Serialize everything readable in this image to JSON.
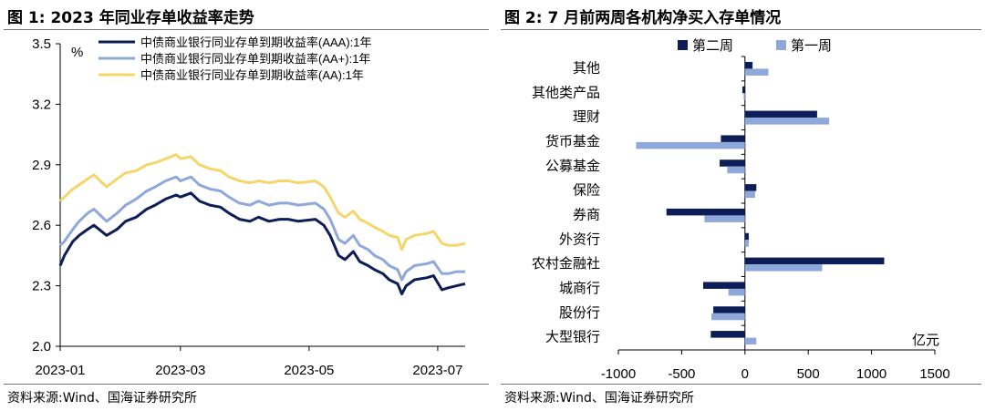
{
  "left": {
    "title": "图 1:  2023 年同业存单收益率走势",
    "source": "资料来源:Wind、国海证券研究所"
  },
  "right": {
    "title": "图 2:  7 月前两周各机构净买入存单情况",
    "source": "资料来源:Wind、国海证券研究所"
  },
  "chart_data": [
    {
      "type": "line",
      "title": "2023 年同业存单收益率走势",
      "ylabel": "%",
      "ylim": [
        2.0,
        3.5
      ],
      "yticks": [
        "3.5",
        "3.2",
        "2.9",
        "2.6",
        "2.3",
        "2.0"
      ],
      "xticks": [
        "2023-01",
        "2023-03",
        "2023-05",
        "2023-07"
      ],
      "xlim": [
        "2023-01-03",
        "2023-07-14"
      ],
      "grid": false,
      "legend_position": "top",
      "series": [
        {
          "name": "中债商业银行同业存单到期收益率(AAA):1年",
          "color": "#0d1d57",
          "points": [
            [
              "2023-01-03",
              2.4
            ],
            [
              "2023-01-05",
              2.45
            ],
            [
              "2023-01-09",
              2.52
            ],
            [
              "2023-01-12",
              2.55
            ],
            [
              "2023-01-16",
              2.58
            ],
            [
              "2023-01-19",
              2.6
            ],
            [
              "2023-01-25",
              2.55
            ],
            [
              "2023-01-30",
              2.58
            ],
            [
              "2023-02-03",
              2.62
            ],
            [
              "2023-02-08",
              2.64
            ],
            [
              "2023-02-13",
              2.68
            ],
            [
              "2023-02-17",
              2.7
            ],
            [
              "2023-02-22",
              2.73
            ],
            [
              "2023-02-27",
              2.75
            ],
            [
              "2023-03-01",
              2.74
            ],
            [
              "2023-03-06",
              2.76
            ],
            [
              "2023-03-10",
              2.72
            ],
            [
              "2023-03-15",
              2.7
            ],
            [
              "2023-03-20",
              2.69
            ],
            [
              "2023-03-24",
              2.66
            ],
            [
              "2023-03-29",
              2.63
            ],
            [
              "2023-04-03",
              2.62
            ],
            [
              "2023-04-07",
              2.64
            ],
            [
              "2023-04-12",
              2.62
            ],
            [
              "2023-04-17",
              2.63
            ],
            [
              "2023-04-21",
              2.63
            ],
            [
              "2023-04-26",
              2.62
            ],
            [
              "2023-05-04",
              2.63
            ],
            [
              "2023-05-08",
              2.6
            ],
            [
              "2023-05-11",
              2.55
            ],
            [
              "2023-05-15",
              2.45
            ],
            [
              "2023-05-18",
              2.43
            ],
            [
              "2023-05-22",
              2.47
            ],
            [
              "2023-05-25",
              2.42
            ],
            [
              "2023-05-29",
              2.4
            ],
            [
              "2023-06-01",
              2.38
            ],
            [
              "2023-06-05",
              2.36
            ],
            [
              "2023-06-08",
              2.33
            ],
            [
              "2023-06-12",
              2.31
            ],
            [
              "2023-06-14",
              2.26
            ],
            [
              "2023-06-16",
              2.3
            ],
            [
              "2023-06-20",
              2.33
            ],
            [
              "2023-06-26",
              2.34
            ],
            [
              "2023-06-29",
              2.35
            ],
            [
              "2023-07-03",
              2.28
            ],
            [
              "2023-07-06",
              2.29
            ],
            [
              "2023-07-10",
              2.3
            ],
            [
              "2023-07-14",
              2.31
            ]
          ]
        },
        {
          "name": "中债商业银行同业存单到期收益率(AA+):1年",
          "color": "#8fa8dc",
          "points": [
            [
              "2023-01-03",
              2.5
            ],
            [
              "2023-01-05",
              2.52
            ],
            [
              "2023-01-09",
              2.58
            ],
            [
              "2023-01-12",
              2.62
            ],
            [
              "2023-01-16",
              2.66
            ],
            [
              "2023-01-19",
              2.68
            ],
            [
              "2023-01-25",
              2.62
            ],
            [
              "2023-01-30",
              2.66
            ],
            [
              "2023-02-03",
              2.7
            ],
            [
              "2023-02-08",
              2.73
            ],
            [
              "2023-02-13",
              2.77
            ],
            [
              "2023-02-17",
              2.79
            ],
            [
              "2023-02-22",
              2.82
            ],
            [
              "2023-02-27",
              2.84
            ],
            [
              "2023-03-01",
              2.82
            ],
            [
              "2023-03-06",
              2.84
            ],
            [
              "2023-03-10",
              2.8
            ],
            [
              "2023-03-15",
              2.78
            ],
            [
              "2023-03-20",
              2.77
            ],
            [
              "2023-03-24",
              2.74
            ],
            [
              "2023-03-29",
              2.71
            ],
            [
              "2023-04-03",
              2.7
            ],
            [
              "2023-04-07",
              2.72
            ],
            [
              "2023-04-12",
              2.7
            ],
            [
              "2023-04-17",
              2.71
            ],
            [
              "2023-04-21",
              2.71
            ],
            [
              "2023-04-26",
              2.7
            ],
            [
              "2023-05-04",
              2.71
            ],
            [
              "2023-05-08",
              2.68
            ],
            [
              "2023-05-11",
              2.63
            ],
            [
              "2023-05-15",
              2.53
            ],
            [
              "2023-05-18",
              2.51
            ],
            [
              "2023-05-22",
              2.55
            ],
            [
              "2023-05-25",
              2.5
            ],
            [
              "2023-05-29",
              2.48
            ],
            [
              "2023-06-01",
              2.45
            ],
            [
              "2023-06-05",
              2.43
            ],
            [
              "2023-06-08",
              2.4
            ],
            [
              "2023-06-12",
              2.38
            ],
            [
              "2023-06-14",
              2.33
            ],
            [
              "2023-06-16",
              2.37
            ],
            [
              "2023-06-20",
              2.4
            ],
            [
              "2023-06-26",
              2.41
            ],
            [
              "2023-06-29",
              2.42
            ],
            [
              "2023-07-03",
              2.36
            ],
            [
              "2023-07-06",
              2.36
            ],
            [
              "2023-07-10",
              2.37
            ],
            [
              "2023-07-14",
              2.37
            ]
          ]
        },
        {
          "name": "中债商业银行同业存单到期收益率(AA):1年",
          "color": "#f6d66b",
          "points": [
            [
              "2023-01-03",
              2.72
            ],
            [
              "2023-01-05",
              2.74
            ],
            [
              "2023-01-09",
              2.78
            ],
            [
              "2023-01-12",
              2.8
            ],
            [
              "2023-01-16",
              2.83
            ],
            [
              "2023-01-19",
              2.85
            ],
            [
              "2023-01-25",
              2.79
            ],
            [
              "2023-01-30",
              2.83
            ],
            [
              "2023-02-03",
              2.86
            ],
            [
              "2023-02-08",
              2.87
            ],
            [
              "2023-02-13",
              2.9
            ],
            [
              "2023-02-17",
              2.91
            ],
            [
              "2023-02-22",
              2.93
            ],
            [
              "2023-02-27",
              2.95
            ],
            [
              "2023-03-01",
              2.93
            ],
            [
              "2023-03-06",
              2.94
            ],
            [
              "2023-03-10",
              2.9
            ],
            [
              "2023-03-15",
              2.88
            ],
            [
              "2023-03-20",
              2.87
            ],
            [
              "2023-03-24",
              2.84
            ],
            [
              "2023-03-29",
              2.82
            ],
            [
              "2023-04-03",
              2.81
            ],
            [
              "2023-04-07",
              2.82
            ],
            [
              "2023-04-12",
              2.81
            ],
            [
              "2023-04-17",
              2.82
            ],
            [
              "2023-04-21",
              2.82
            ],
            [
              "2023-04-26",
              2.81
            ],
            [
              "2023-05-04",
              2.82
            ],
            [
              "2023-05-08",
              2.79
            ],
            [
              "2023-05-11",
              2.74
            ],
            [
              "2023-05-15",
              2.66
            ],
            [
              "2023-05-18",
              2.64
            ],
            [
              "2023-05-22",
              2.67
            ],
            [
              "2023-05-25",
              2.63
            ],
            [
              "2023-05-29",
              2.61
            ],
            [
              "2023-06-01",
              2.59
            ],
            [
              "2023-06-05",
              2.57
            ],
            [
              "2023-06-08",
              2.55
            ],
            [
              "2023-06-12",
              2.54
            ],
            [
              "2023-06-14",
              2.48
            ],
            [
              "2023-06-16",
              2.53
            ],
            [
              "2023-06-20",
              2.55
            ],
            [
              "2023-06-26",
              2.56
            ],
            [
              "2023-06-29",
              2.57
            ],
            [
              "2023-07-03",
              2.51
            ],
            [
              "2023-07-06",
              2.5
            ],
            [
              "2023-07-10",
              2.5
            ],
            [
              "2023-07-14",
              2.51
            ]
          ]
        }
      ]
    },
    {
      "type": "bar",
      "orientation": "horizontal",
      "title": "7 月前两周各机构净买入存单情况",
      "unit_label": "亿元",
      "xlim": [
        -1000,
        1500
      ],
      "xticks": [
        "-1000",
        "-500",
        "0",
        "500",
        "1000",
        "1500"
      ],
      "legend_position": "top",
      "categories": [
        "其他",
        "其他类产品",
        "理财",
        "货币基金",
        "公募基金",
        "保险",
        "券商",
        "外资行",
        "农村金融社",
        "城商行",
        "股份行",
        "大型银行"
      ],
      "series": [
        {
          "name": "第二周",
          "color": "#0d1d57",
          "values": [
            60,
            -20,
            570,
            -190,
            -200,
            90,
            -620,
            30,
            1100,
            -330,
            -250,
            -270
          ]
        },
        {
          "name": "第一周",
          "color": "#8fa8dc",
          "values": [
            185,
            -10,
            665,
            -860,
            -140,
            80,
            -320,
            30,
            610,
            -130,
            -265,
            90
          ]
        }
      ]
    }
  ]
}
